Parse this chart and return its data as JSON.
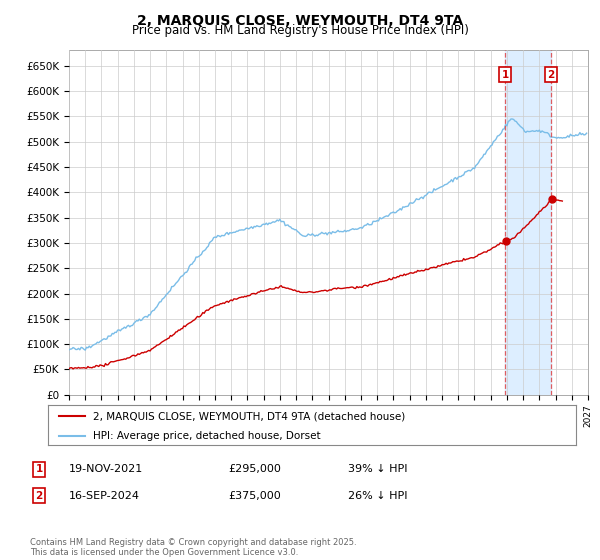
{
  "title": "2, MARQUIS CLOSE, WEYMOUTH, DT4 9TA",
  "subtitle": "Price paid vs. HM Land Registry's House Price Index (HPI)",
  "yticks": [
    0,
    50000,
    100000,
    150000,
    200000,
    250000,
    300000,
    350000,
    400000,
    450000,
    500000,
    550000,
    600000,
    650000
  ],
  "ytick_labels": [
    "£0",
    "£50K",
    "£100K",
    "£150K",
    "£200K",
    "£250K",
    "£300K",
    "£350K",
    "£400K",
    "£450K",
    "£500K",
    "£550K",
    "£600K",
    "£650K"
  ],
  "hpi_color": "#7abde8",
  "price_color": "#cc0000",
  "dash_color": "#dd4444",
  "shade_color": "#ddeeff",
  "transaction1_year": 2021.88,
  "transaction2_year": 2024.71,
  "transaction1_price": 295000,
  "transaction2_price": 375000,
  "legend_entries": [
    "2, MARQUIS CLOSE, WEYMOUTH, DT4 9TA (detached house)",
    "HPI: Average price, detached house, Dorset"
  ],
  "table_rows": [
    [
      "1",
      "19-NOV-2021",
      "£295,000",
      "39% ↓ HPI"
    ],
    [
      "2",
      "16-SEP-2024",
      "£375,000",
      "26% ↓ HPI"
    ]
  ],
  "footnote": "Contains HM Land Registry data © Crown copyright and database right 2025.\nThis data is licensed under the Open Government Licence v3.0.",
  "background_color": "#ffffff",
  "grid_color": "#cccccc",
  "xmin": 1995,
  "xmax": 2027,
  "ymin": 0,
  "ymax": 680000
}
